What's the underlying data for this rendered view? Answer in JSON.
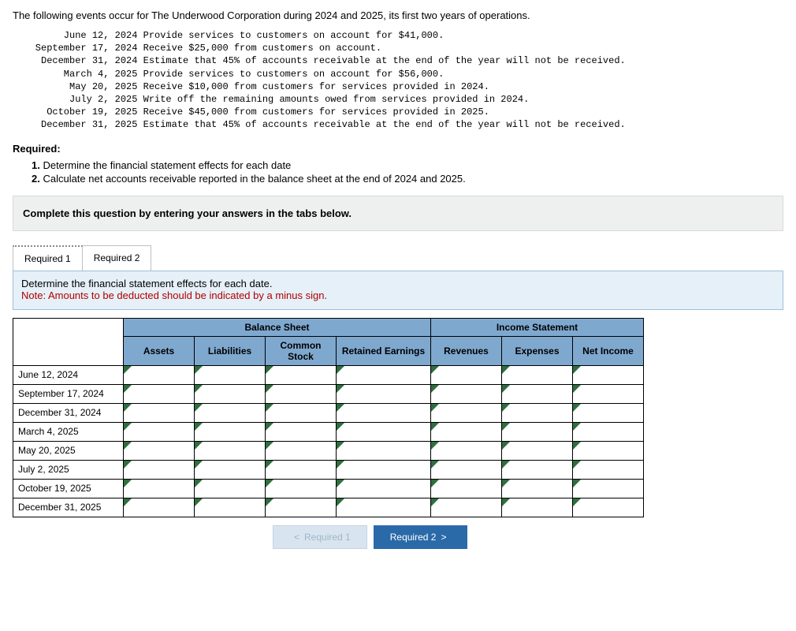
{
  "intro": "The following events occur for The Underwood Corporation during 2024 and 2025, its first two years of operations.",
  "events": [
    {
      "date": "June 12, 2024",
      "text": "Provide services to customers on account for $41,000."
    },
    {
      "date": "September 17, 2024",
      "text": "Receive $25,000 from customers on account."
    },
    {
      "date": "December 31, 2024",
      "text": "Estimate that 45% of accounts receivable at the end of the year will not be received."
    },
    {
      "date": "March 4, 2025",
      "text": "Provide services to customers on account for $56,000."
    },
    {
      "date": "May 20, 2025",
      "text": "Receive $10,000 from customers for services provided in 2024."
    },
    {
      "date": "July 2, 2025",
      "text": "Write off the remaining amounts owed from services provided in 2024."
    },
    {
      "date": "October 19, 2025",
      "text": "Receive $45,000 from customers for services provided in 2025."
    },
    {
      "date": "December 31, 2025",
      "text": "Estimate that 45% of accounts receivable at the end of the year will not be received."
    }
  ],
  "required_label": "Required:",
  "requirements": [
    "Determine the financial statement effects for each date",
    "Calculate net accounts receivable reported in the balance sheet at the end of 2024 and 2025."
  ],
  "instruction_box": "Complete this question by entering your answers in the tabs below.",
  "tabs": {
    "r1": "Required 1",
    "r2": "Required 2"
  },
  "panel": {
    "desc": "Determine the financial statement effects for each date.",
    "note": "Note: Amounts to be deducted should be indicated by a minus sign."
  },
  "grid": {
    "group_headers": {
      "bs": "Balance Sheet",
      "is": "Income Statement"
    },
    "col_headers": {
      "assets": "Assets",
      "liabilities": "Liabilities",
      "common_stock": "Common Stock",
      "retained_earnings": "Retained Earnings",
      "revenues": "Revenues",
      "expenses": "Expenses",
      "net_income": "Net Income"
    },
    "row_dates": [
      "June 12, 2024",
      "September 17, 2024",
      "December 31, 2024",
      "March 4, 2025",
      "May 20, 2025",
      "July 2, 2025",
      "October 19, 2025",
      "December 31, 2025"
    ],
    "colors": {
      "header_bg": "#7fa8cf",
      "input_marker": "#2f6f3f",
      "border": "#000000"
    }
  },
  "nav": {
    "prev": "Required 1",
    "next": "Required 2",
    "prev_chev": "<",
    "next_chev": ">"
  }
}
